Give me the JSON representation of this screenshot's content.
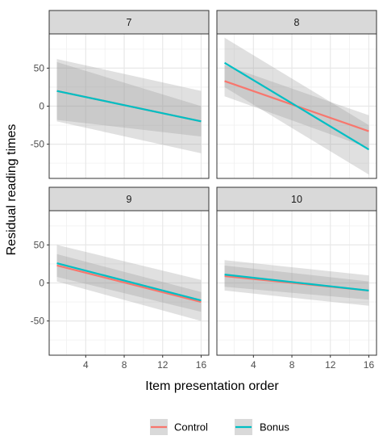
{
  "chart_data": {
    "type": "line",
    "xlabel": "Item presentation order",
    "ylabel": "Residual reading times",
    "xlim": [
      0.2,
      16.8
    ],
    "ylim": [
      -95,
      95
    ],
    "x_ticks": [
      4,
      8,
      12,
      16
    ],
    "y_ticks": [
      -50,
      0,
      50
    ],
    "grid": true,
    "legend_position": "bottom",
    "colors": {
      "Control": "#F8766D",
      "Bonus": "#00BFC4"
    },
    "x_line": [
      1,
      16
    ],
    "panels": [
      {
        "strip": "7",
        "series": [
          {
            "name": "Control",
            "values": [
              20,
              -20
            ],
            "ci_lower": [
              -18,
              -40
            ],
            "ci_upper": [
              58,
              0
            ]
          },
          {
            "name": "Bonus",
            "values": [
              20,
              -20
            ],
            "ci_lower": [
              -20,
              -62
            ],
            "ci_upper": [
              62,
              20
            ]
          }
        ]
      },
      {
        "strip": "8",
        "series": [
          {
            "name": "Control",
            "values": [
              33,
              -33
            ],
            "ci_lower": [
              13,
              -55
            ],
            "ci_upper": [
              54,
              -12
            ]
          },
          {
            "name": "Bonus",
            "values": [
              57,
              -57
            ],
            "ci_lower": [
              25,
              -90
            ],
            "ci_upper": [
              90,
              -25
            ]
          }
        ]
      },
      {
        "strip": "9",
        "series": [
          {
            "name": "Control",
            "values": [
              23,
              -25
            ],
            "ci_lower": [
              8,
              -38
            ],
            "ci_upper": [
              38,
              -12
            ]
          },
          {
            "name": "Bonus",
            "values": [
              26,
              -23
            ],
            "ci_lower": [
              2,
              -50
            ],
            "ci_upper": [
              50,
              4
            ]
          }
        ]
      },
      {
        "strip": "10",
        "series": [
          {
            "name": "Control",
            "values": [
              9,
              -10
            ],
            "ci_lower": [
              -5,
              -22
            ],
            "ci_upper": [
              23,
              2
            ]
          },
          {
            "name": "Bonus",
            "values": [
              11,
              -10
            ],
            "ci_lower": [
              -10,
              -30
            ],
            "ci_upper": [
              30,
              10
            ]
          }
        ]
      }
    ]
  }
}
